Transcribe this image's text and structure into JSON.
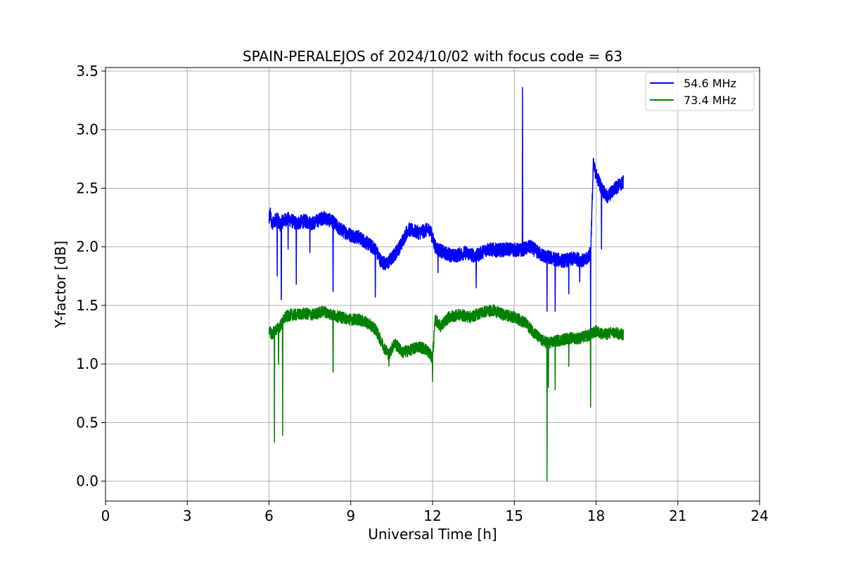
{
  "chart_data": {
    "type": "line",
    "title": "SPAIN-PERALEJOS of 2024/10/02 with focus code = 63",
    "xlabel": "Universal Time [h]",
    "ylabel": "Y-factor [dB]",
    "xlim": [
      0,
      24
    ],
    "ylim": [
      -0.17,
      3.53
    ],
    "xticks": [
      0,
      3,
      6,
      9,
      12,
      15,
      18,
      21,
      24
    ],
    "xtick_labels": [
      "0",
      "3",
      "6",
      "9",
      "12",
      "15",
      "18",
      "21",
      "24"
    ],
    "yticks": [
      0.0,
      0.5,
      1.0,
      1.5,
      2.0,
      2.5,
      3.0,
      3.5
    ],
    "ytick_labels": [
      "0.0",
      "0.5",
      "1.0",
      "1.5",
      "2.0",
      "2.5",
      "3.0",
      "3.5"
    ],
    "grid": true,
    "legend_position": "top-right",
    "series": [
      {
        "name": "54.6 MHz",
        "color": "#0000ff",
        "x": [
          6.0,
          6.05,
          6.1,
          6.2,
          6.3,
          6.4,
          6.5,
          6.7,
          7.0,
          7.3,
          7.6,
          8.0,
          8.3,
          8.6,
          9.0,
          9.3,
          9.6,
          9.9,
          10.1,
          10.3,
          10.5,
          10.8,
          11.1,
          11.5,
          11.9,
          12.1,
          12.4,
          12.8,
          13.2,
          13.6,
          14.0,
          14.4,
          14.8,
          15.2,
          15.6,
          16.0,
          16.4,
          16.8,
          17.2,
          17.6,
          17.8,
          17.9,
          18.0,
          18.2,
          18.4,
          18.7,
          19.0
        ],
        "y": [
          2.22,
          2.3,
          2.18,
          2.22,
          2.25,
          2.18,
          2.22,
          2.24,
          2.2,
          2.22,
          2.2,
          2.25,
          2.22,
          2.15,
          2.1,
          2.08,
          2.03,
          1.98,
          1.88,
          1.85,
          1.9,
          2.0,
          2.15,
          2.12,
          2.15,
          2.0,
          1.95,
          1.92,
          1.95,
          1.92,
          1.98,
          1.97,
          1.98,
          1.97,
          2.0,
          1.93,
          1.9,
          1.88,
          1.9,
          1.88,
          1.95,
          2.7,
          2.62,
          2.5,
          2.42,
          2.5,
          2.55
        ],
        "spikes": [
          [
            6.3,
            1.75
          ],
          [
            6.45,
            1.55
          ],
          [
            6.7,
            1.98
          ],
          [
            7.0,
            1.68
          ],
          [
            7.5,
            1.95
          ],
          [
            8.35,
            1.62
          ],
          [
            9.9,
            1.57
          ],
          [
            12.2,
            1.78
          ],
          [
            13.6,
            1.65
          ],
          [
            15.3,
            3.36
          ],
          [
            16.2,
            1.45
          ],
          [
            16.5,
            1.45
          ],
          [
            17.0,
            1.6
          ],
          [
            17.4,
            1.7
          ],
          [
            17.8,
            1.25
          ],
          [
            18.2,
            1.98
          ]
        ],
        "noise": 0.06
      },
      {
        "name": "73.4 MHz",
        "color": "#008000",
        "x": [
          6.0,
          6.1,
          6.2,
          6.4,
          6.6,
          6.8,
          7.0,
          7.3,
          7.6,
          8.0,
          8.3,
          8.6,
          9.0,
          9.3,
          9.6,
          9.9,
          10.2,
          10.4,
          10.6,
          10.9,
          11.2,
          11.5,
          11.8,
          12.0,
          12.1,
          12.3,
          12.6,
          13.0,
          13.4,
          13.8,
          14.2,
          14.6,
          15.0,
          15.4,
          15.8,
          16.0,
          16.3,
          16.6,
          17.0,
          17.4,
          17.8,
          18.0,
          18.3,
          18.6,
          19.0
        ],
        "y": [
          1.3,
          1.25,
          1.28,
          1.32,
          1.4,
          1.42,
          1.42,
          1.43,
          1.42,
          1.45,
          1.42,
          1.4,
          1.38,
          1.38,
          1.35,
          1.3,
          1.15,
          1.08,
          1.18,
          1.1,
          1.12,
          1.15,
          1.12,
          1.05,
          1.38,
          1.32,
          1.4,
          1.42,
          1.4,
          1.44,
          1.46,
          1.42,
          1.4,
          1.35,
          1.25,
          1.2,
          1.18,
          1.2,
          1.22,
          1.22,
          1.25,
          1.28,
          1.25,
          1.27,
          1.25
        ],
        "spikes": [
          [
            6.2,
            0.33
          ],
          [
            6.35,
            1.0
          ],
          [
            6.5,
            0.39
          ],
          [
            8.35,
            0.93
          ],
          [
            10.4,
            0.98
          ],
          [
            12.0,
            0.85
          ],
          [
            16.2,
            0.0
          ],
          [
            16.25,
            0.8
          ],
          [
            16.5,
            0.78
          ],
          [
            17.0,
            0.98
          ],
          [
            17.8,
            0.63
          ]
        ],
        "noise": 0.05
      }
    ]
  }
}
